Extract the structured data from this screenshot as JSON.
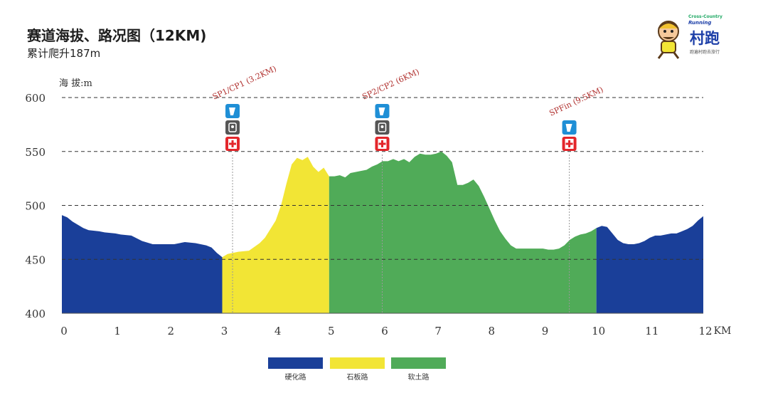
{
  "header": {
    "title": "赛道海拔、路况图（12KM)",
    "subtitle": "累计爬升187m"
  },
  "logo": {
    "brand_small": "Cross-Country",
    "brand_run": "Running",
    "brand_cn": "村跑",
    "tagline": "跑遍村跑去旅行"
  },
  "chart_data": {
    "type": "area",
    "title": "赛道海拔、路况图（12KM)",
    "ylabel": "海 拔:m",
    "xunit": "KM",
    "xlim": [
      0,
      12
    ],
    "ylim": [
      400,
      600
    ],
    "xticks": [
      0,
      1,
      2,
      3,
      4,
      5,
      6,
      7,
      8,
      9,
      10,
      11,
      12
    ],
    "yticks": [
      400,
      450,
      500,
      550,
      600
    ],
    "ytick_labels": [
      "400",
      "450",
      "500",
      "550",
      "600"
    ],
    "xtick_labels": [
      "0",
      "1",
      "2",
      "3",
      "4",
      "5",
      "6",
      "7",
      "8",
      "9",
      "10",
      "11",
      "12"
    ],
    "grid": "dashed-horizontal",
    "profile": [
      [
        0,
        491
      ],
      [
        0.1,
        489
      ],
      [
        0.2,
        485
      ],
      [
        0.4,
        479
      ],
      [
        0.5,
        477
      ],
      [
        0.7,
        476
      ],
      [
        0.8,
        475
      ],
      [
        1.0,
        474
      ],
      [
        1.1,
        473
      ],
      [
        1.3,
        472
      ],
      [
        1.5,
        467
      ],
      [
        1.7,
        464
      ],
      [
        1.9,
        464
      ],
      [
        2.1,
        464
      ],
      [
        2.3,
        466
      ],
      [
        2.5,
        465
      ],
      [
        2.7,
        463
      ],
      [
        2.8,
        461
      ],
      [
        2.9,
        456
      ],
      [
        3.0,
        452
      ],
      [
        3.1,
        455
      ],
      [
        3.3,
        457
      ],
      [
        3.5,
        458
      ],
      [
        3.7,
        465
      ],
      [
        3.8,
        470
      ],
      [
        3.9,
        478
      ],
      [
        4.0,
        486
      ],
      [
        4.1,
        500
      ],
      [
        4.2,
        520
      ],
      [
        4.3,
        538
      ],
      [
        4.4,
        544
      ],
      [
        4.5,
        542
      ],
      [
        4.6,
        545
      ],
      [
        4.7,
        536
      ],
      [
        4.8,
        531
      ],
      [
        4.9,
        535
      ],
      [
        5.0,
        527
      ],
      [
        5.1,
        527
      ],
      [
        5.2,
        528
      ],
      [
        5.3,
        526
      ],
      [
        5.4,
        530
      ],
      [
        5.5,
        531
      ],
      [
        5.6,
        532
      ],
      [
        5.7,
        533
      ],
      [
        5.8,
        536
      ],
      [
        5.9,
        538
      ],
      [
        6.0,
        541
      ],
      [
        6.1,
        541
      ],
      [
        6.2,
        543
      ],
      [
        6.3,
        541
      ],
      [
        6.4,
        543
      ],
      [
        6.5,
        540
      ],
      [
        6.6,
        545
      ],
      [
        6.7,
        548
      ],
      [
        6.8,
        547
      ],
      [
        6.9,
        547
      ],
      [
        7.0,
        548
      ],
      [
        7.1,
        550
      ],
      [
        7.2,
        546
      ],
      [
        7.3,
        540
      ],
      [
        7.4,
        519
      ],
      [
        7.5,
        519
      ],
      [
        7.6,
        521
      ],
      [
        7.7,
        524
      ],
      [
        7.8,
        518
      ],
      [
        7.9,
        508
      ],
      [
        8.0,
        497
      ],
      [
        8.1,
        486
      ],
      [
        8.2,
        476
      ],
      [
        8.3,
        469
      ],
      [
        8.4,
        463
      ],
      [
        8.5,
        460
      ],
      [
        8.7,
        460
      ],
      [
        8.9,
        460
      ],
      [
        9.0,
        460
      ],
      [
        9.1,
        459
      ],
      [
        9.2,
        459
      ],
      [
        9.3,
        460
      ],
      [
        9.4,
        463
      ],
      [
        9.5,
        468
      ],
      [
        9.6,
        471
      ],
      [
        9.7,
        473
      ],
      [
        9.8,
        474
      ],
      [
        9.9,
        476
      ],
      [
        10.0,
        479
      ],
      [
        10.1,
        481
      ],
      [
        10.2,
        480
      ],
      [
        10.3,
        474
      ],
      [
        10.4,
        468
      ],
      [
        10.5,
        465
      ],
      [
        10.6,
        464
      ],
      [
        10.7,
        464
      ],
      [
        10.8,
        465
      ],
      [
        10.9,
        467
      ],
      [
        11.0,
        470
      ],
      [
        11.1,
        472
      ],
      [
        11.2,
        472
      ],
      [
        11.3,
        473
      ],
      [
        11.4,
        474
      ],
      [
        11.5,
        474
      ],
      [
        11.6,
        476
      ],
      [
        11.7,
        478
      ],
      [
        11.8,
        481
      ],
      [
        11.9,
        486
      ],
      [
        12.0,
        490
      ]
    ],
    "segments": [
      {
        "name": "硬化路",
        "from": 0,
        "to": 3.0,
        "color": "#1a3f99"
      },
      {
        "name": "石板路",
        "from": 3.0,
        "to": 5.0,
        "color": "#f2e535"
      },
      {
        "name": "软土路",
        "from": 5.0,
        "to": 10.0,
        "color": "#50ab58"
      },
      {
        "name": "硬化路",
        "from": 10.0,
        "to": 12.0,
        "color": "#1a3f99"
      }
    ],
    "legend": [
      {
        "label": "硬化路",
        "color": "#1a3f99"
      },
      {
        "label": "石板路",
        "color": "#f2e535"
      },
      {
        "label": "软土路",
        "color": "#50ab58"
      }
    ],
    "checkpoints": [
      {
        "label": "SP1/CP1 (3.2KM)",
        "km": 3.2,
        "icons": [
          "water-icon",
          "timing-icon",
          "medical-icon"
        ]
      },
      {
        "label": "SP2/CP2 (6KM)",
        "km": 6.0,
        "icons": [
          "water-icon",
          "timing-icon",
          "medical-icon"
        ]
      },
      {
        "label": "SPFin (9.5KM)",
        "km": 9.5,
        "icons": [
          "water-icon",
          "medical-icon"
        ]
      }
    ]
  },
  "colors": {
    "hard_road": "#1a3f99",
    "stone_road": "#f2e535",
    "dirt_road": "#50ab58",
    "water_icon": "#1f8fd6",
    "timing_icon": "#555555",
    "medical_icon": "#e3262b",
    "checkpoint_text": "#b0302e"
  }
}
